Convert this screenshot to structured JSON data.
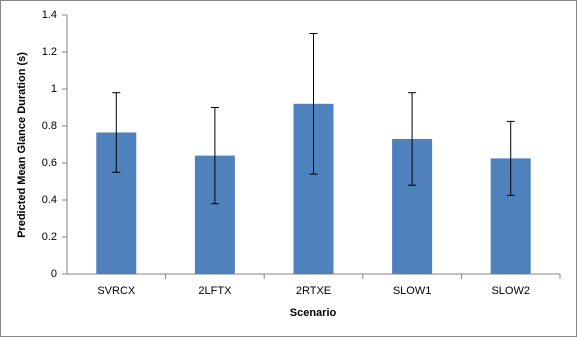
{
  "chart_data": {
    "type": "bar",
    "x_label": "Scenario",
    "y_label": "Predicted Mean Glance Duration (s)",
    "categories": [
      "SVRCX",
      "2LFTX",
      "2RTXE",
      "SLOW1",
      "SLOW2"
    ],
    "values": [
      0.765,
      0.64,
      0.92,
      0.73,
      0.625
    ],
    "errors": [
      0.215,
      0.26,
      0.38,
      0.25,
      0.2
    ],
    "color": "#4f81bd",
    "ylim": [
      0,
      1.4
    ],
    "yticks": [
      0,
      0.2,
      0.4,
      0.6,
      0.8,
      1,
      1.2,
      1.4
    ],
    "grid": false
  }
}
